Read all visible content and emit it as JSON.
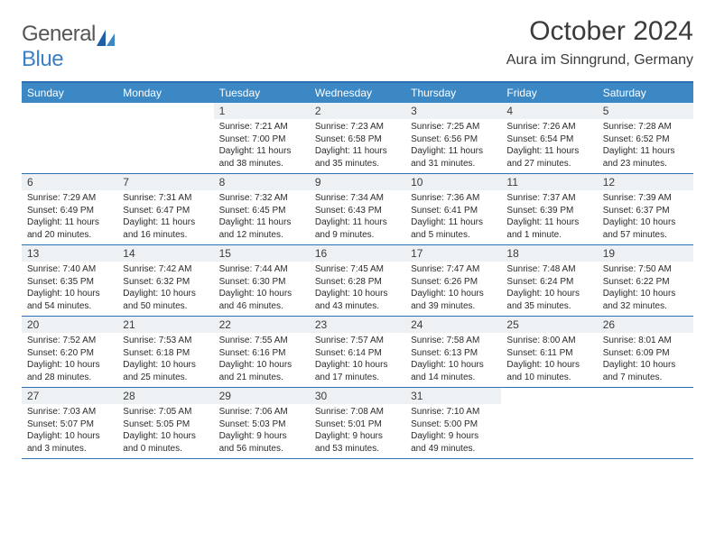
{
  "header": {
    "logo_general": "General",
    "logo_blue": "Blue",
    "logo_accent_color": "#3b7fc4",
    "logo_text_color": "#565656",
    "month_title": "October 2024",
    "location": "Aura im Sinngrund, Germany"
  },
  "colors": {
    "header_bar": "#3b88c5",
    "border": "#2b6fb5",
    "daynum_bg": "#eef1f3",
    "text": "#3b3b3b",
    "body_text": "#2b2b2b",
    "white": "#ffffff"
  },
  "days_of_week": [
    "Sunday",
    "Monday",
    "Tuesday",
    "Wednesday",
    "Thursday",
    "Friday",
    "Saturday"
  ],
  "weeks": [
    [
      {
        "day": "",
        "sunrise": "",
        "sunset": "",
        "daylight": ""
      },
      {
        "day": "",
        "sunrise": "",
        "sunset": "",
        "daylight": ""
      },
      {
        "day": "1",
        "sunrise": "Sunrise: 7:21 AM",
        "sunset": "Sunset: 7:00 PM",
        "daylight": "Daylight: 11 hours and 38 minutes."
      },
      {
        "day": "2",
        "sunrise": "Sunrise: 7:23 AM",
        "sunset": "Sunset: 6:58 PM",
        "daylight": "Daylight: 11 hours and 35 minutes."
      },
      {
        "day": "3",
        "sunrise": "Sunrise: 7:25 AM",
        "sunset": "Sunset: 6:56 PM",
        "daylight": "Daylight: 11 hours and 31 minutes."
      },
      {
        "day": "4",
        "sunrise": "Sunrise: 7:26 AM",
        "sunset": "Sunset: 6:54 PM",
        "daylight": "Daylight: 11 hours and 27 minutes."
      },
      {
        "day": "5",
        "sunrise": "Sunrise: 7:28 AM",
        "sunset": "Sunset: 6:52 PM",
        "daylight": "Daylight: 11 hours and 23 minutes."
      }
    ],
    [
      {
        "day": "6",
        "sunrise": "Sunrise: 7:29 AM",
        "sunset": "Sunset: 6:49 PM",
        "daylight": "Daylight: 11 hours and 20 minutes."
      },
      {
        "day": "7",
        "sunrise": "Sunrise: 7:31 AM",
        "sunset": "Sunset: 6:47 PM",
        "daylight": "Daylight: 11 hours and 16 minutes."
      },
      {
        "day": "8",
        "sunrise": "Sunrise: 7:32 AM",
        "sunset": "Sunset: 6:45 PM",
        "daylight": "Daylight: 11 hours and 12 minutes."
      },
      {
        "day": "9",
        "sunrise": "Sunrise: 7:34 AM",
        "sunset": "Sunset: 6:43 PM",
        "daylight": "Daylight: 11 hours and 9 minutes."
      },
      {
        "day": "10",
        "sunrise": "Sunrise: 7:36 AM",
        "sunset": "Sunset: 6:41 PM",
        "daylight": "Daylight: 11 hours and 5 minutes."
      },
      {
        "day": "11",
        "sunrise": "Sunrise: 7:37 AM",
        "sunset": "Sunset: 6:39 PM",
        "daylight": "Daylight: 11 hours and 1 minute."
      },
      {
        "day": "12",
        "sunrise": "Sunrise: 7:39 AM",
        "sunset": "Sunset: 6:37 PM",
        "daylight": "Daylight: 10 hours and 57 minutes."
      }
    ],
    [
      {
        "day": "13",
        "sunrise": "Sunrise: 7:40 AM",
        "sunset": "Sunset: 6:35 PM",
        "daylight": "Daylight: 10 hours and 54 minutes."
      },
      {
        "day": "14",
        "sunrise": "Sunrise: 7:42 AM",
        "sunset": "Sunset: 6:32 PM",
        "daylight": "Daylight: 10 hours and 50 minutes."
      },
      {
        "day": "15",
        "sunrise": "Sunrise: 7:44 AM",
        "sunset": "Sunset: 6:30 PM",
        "daylight": "Daylight: 10 hours and 46 minutes."
      },
      {
        "day": "16",
        "sunrise": "Sunrise: 7:45 AM",
        "sunset": "Sunset: 6:28 PM",
        "daylight": "Daylight: 10 hours and 43 minutes."
      },
      {
        "day": "17",
        "sunrise": "Sunrise: 7:47 AM",
        "sunset": "Sunset: 6:26 PM",
        "daylight": "Daylight: 10 hours and 39 minutes."
      },
      {
        "day": "18",
        "sunrise": "Sunrise: 7:48 AM",
        "sunset": "Sunset: 6:24 PM",
        "daylight": "Daylight: 10 hours and 35 minutes."
      },
      {
        "day": "19",
        "sunrise": "Sunrise: 7:50 AM",
        "sunset": "Sunset: 6:22 PM",
        "daylight": "Daylight: 10 hours and 32 minutes."
      }
    ],
    [
      {
        "day": "20",
        "sunrise": "Sunrise: 7:52 AM",
        "sunset": "Sunset: 6:20 PM",
        "daylight": "Daylight: 10 hours and 28 minutes."
      },
      {
        "day": "21",
        "sunrise": "Sunrise: 7:53 AM",
        "sunset": "Sunset: 6:18 PM",
        "daylight": "Daylight: 10 hours and 25 minutes."
      },
      {
        "day": "22",
        "sunrise": "Sunrise: 7:55 AM",
        "sunset": "Sunset: 6:16 PM",
        "daylight": "Daylight: 10 hours and 21 minutes."
      },
      {
        "day": "23",
        "sunrise": "Sunrise: 7:57 AM",
        "sunset": "Sunset: 6:14 PM",
        "daylight": "Daylight: 10 hours and 17 minutes."
      },
      {
        "day": "24",
        "sunrise": "Sunrise: 7:58 AM",
        "sunset": "Sunset: 6:13 PM",
        "daylight": "Daylight: 10 hours and 14 minutes."
      },
      {
        "day": "25",
        "sunrise": "Sunrise: 8:00 AM",
        "sunset": "Sunset: 6:11 PM",
        "daylight": "Daylight: 10 hours and 10 minutes."
      },
      {
        "day": "26",
        "sunrise": "Sunrise: 8:01 AM",
        "sunset": "Sunset: 6:09 PM",
        "daylight": "Daylight: 10 hours and 7 minutes."
      }
    ],
    [
      {
        "day": "27",
        "sunrise": "Sunrise: 7:03 AM",
        "sunset": "Sunset: 5:07 PM",
        "daylight": "Daylight: 10 hours and 3 minutes."
      },
      {
        "day": "28",
        "sunrise": "Sunrise: 7:05 AM",
        "sunset": "Sunset: 5:05 PM",
        "daylight": "Daylight: 10 hours and 0 minutes."
      },
      {
        "day": "29",
        "sunrise": "Sunrise: 7:06 AM",
        "sunset": "Sunset: 5:03 PM",
        "daylight": "Daylight: 9 hours and 56 minutes."
      },
      {
        "day": "30",
        "sunrise": "Sunrise: 7:08 AM",
        "sunset": "Sunset: 5:01 PM",
        "daylight": "Daylight: 9 hours and 53 minutes."
      },
      {
        "day": "31",
        "sunrise": "Sunrise: 7:10 AM",
        "sunset": "Sunset: 5:00 PM",
        "daylight": "Daylight: 9 hours and 49 minutes."
      },
      {
        "day": "",
        "sunrise": "",
        "sunset": "",
        "daylight": ""
      },
      {
        "day": "",
        "sunrise": "",
        "sunset": "",
        "daylight": ""
      }
    ]
  ]
}
